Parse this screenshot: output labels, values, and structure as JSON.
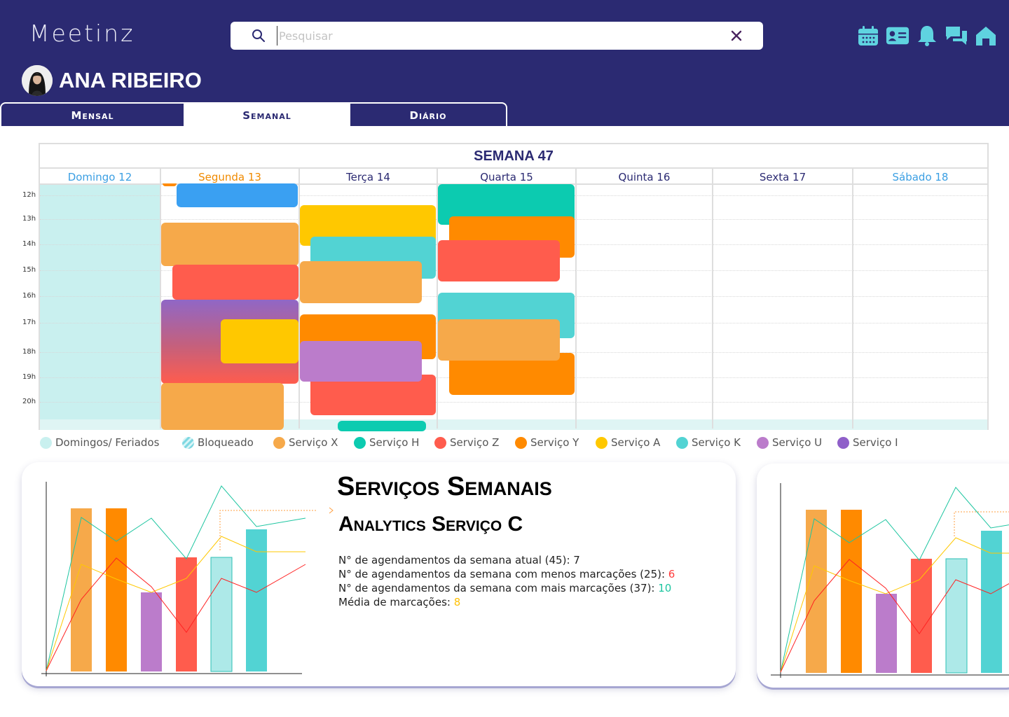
{
  "app": {
    "logo": "Meetinz"
  },
  "search": {
    "placeholder": "Pesquisar",
    "value": ""
  },
  "user": {
    "name": "ANA RIBEIRO"
  },
  "tabs": [
    {
      "label": "Mensal",
      "active": false
    },
    {
      "label": "Semanal",
      "active": true
    },
    {
      "label": "Diário",
      "active": false
    }
  ],
  "week": {
    "title": "SEMANA 47",
    "days": [
      {
        "label": "Domingo 12",
        "color": "#3b9fe3"
      },
      {
        "label": "Segunda 13",
        "color": "#f08a00"
      },
      {
        "label": "Terça 14",
        "color": "#2b2a72"
      },
      {
        "label": "Quarta 15",
        "color": "#2b2a72"
      },
      {
        "label": "Quinta 16",
        "color": "#2b2a72"
      },
      {
        "label": "Sexta 17",
        "color": "#2b2a72"
      },
      {
        "label": "Sábado 18",
        "color": "#3b9fe3"
      }
    ],
    "hours": [
      "12h",
      "13h",
      "14h",
      "15h",
      "16h",
      "17h",
      "18h",
      "19h",
      "20h"
    ]
  },
  "legend": [
    {
      "label": "Domingos/ Feriados",
      "color": "#c9f0ef"
    },
    {
      "label": "Bloqueado",
      "color": "#7fd8e2"
    },
    {
      "label": "Serviço X",
      "color": "#f6a94a"
    },
    {
      "label": "Serviço H",
      "color": "#0ccbb0"
    },
    {
      "label": "Serviço Z",
      "color": "#ff5c4d"
    },
    {
      "label": "Serviço Y",
      "color": "#ff8a00"
    },
    {
      "label": "Serviço A",
      "color": "#ffc800"
    },
    {
      "label": "Serviço K",
      "color": "#52d3d3"
    },
    {
      "label": "Serviço U",
      "color": "#bb7ccb"
    },
    {
      "label": "Serviço I",
      "color": "#8f5fc9"
    }
  ],
  "analytics": {
    "title": "Serviços Semanais",
    "subtitle": "Analytics Serviço C",
    "stats": [
      {
        "label": "N° de agendamentos da semana atual (45): ",
        "value": "7",
        "value_color": "#222222"
      },
      {
        "label": "N° de agendamentos da semana com menos marcações (25): ",
        "value": "6",
        "value_color": "#ff3b3b"
      },
      {
        "label": "N° de agendamentos da semana com mais marcações (37): ",
        "value": "10",
        "value_color": "#1dc5a0"
      },
      {
        "label": "Média de marcações: ",
        "value": "8",
        "value_color": "#ffc107"
      }
    ]
  }
}
